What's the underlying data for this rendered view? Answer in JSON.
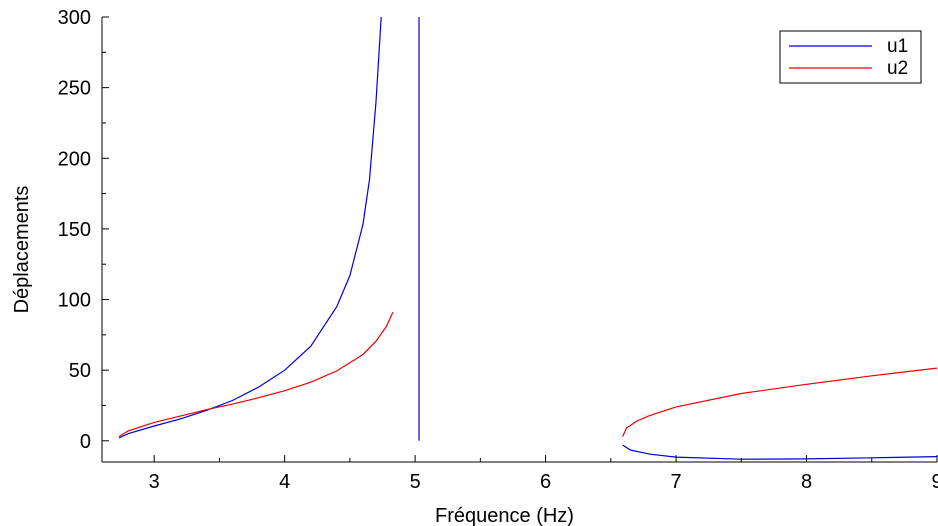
{
  "chart_data": {
    "type": "line",
    "title": "",
    "xlabel": "Fréquence (Hz)",
    "ylabel": "Déplacements",
    "xlim": [
      2.6,
      9.0
    ],
    "ylim": [
      -15,
      300
    ],
    "xticks": [
      3,
      4,
      5,
      6,
      7,
      8,
      9
    ],
    "xtick_labels": [
      "3",
      "4",
      "5",
      "6",
      "7",
      "8",
      "9"
    ],
    "yticks": [
      0,
      50,
      100,
      150,
      200,
      250,
      300
    ],
    "ytick_labels": [
      "0",
      "50",
      "100",
      "150",
      "200",
      "250",
      "300"
    ],
    "grid": false,
    "legend": "top-right",
    "series": [
      {
        "name": "u1",
        "color": "#0000dd",
        "segments": [
          [
            [
              2.73,
              2
            ],
            [
              2.8,
              5.0
            ],
            [
              3.0,
              10.5
            ],
            [
              3.2,
              15.5
            ],
            [
              3.4,
              21.5
            ],
            [
              3.6,
              28.5
            ],
            [
              3.8,
              38
            ],
            [
              4.0,
              50
            ],
            [
              4.2,
              67
            ],
            [
              4.4,
              95
            ],
            [
              4.5,
              117
            ],
            [
              4.6,
              153
            ],
            [
              4.65,
              185
            ],
            [
              4.7,
              240
            ],
            [
              4.74,
              300
            ]
          ],
          [
            [
              5.03,
              300
            ],
            [
              5.03,
              0
            ]
          ],
          [
            [
              6.59,
              -3
            ],
            [
              6.65,
              -6.5
            ],
            [
              6.8,
              -9.5
            ],
            [
              7.0,
              -11.5
            ],
            [
              7.5,
              -13
            ],
            [
              8.0,
              -12.8
            ],
            [
              8.5,
              -12
            ],
            [
              9.0,
              -11.2
            ]
          ]
        ]
      },
      {
        "name": "u2",
        "color": "#ee0000",
        "segments": [
          [
            [
              2.73,
              3
            ],
            [
              2.8,
              7
            ],
            [
              3.0,
              13
            ],
            [
              3.2,
              17.5
            ],
            [
              3.4,
              22
            ],
            [
              3.6,
              26
            ],
            [
              3.8,
              30.5
            ],
            [
              4.0,
              35.5
            ],
            [
              4.2,
              41.5
            ],
            [
              4.4,
              49.5
            ],
            [
              4.6,
              61
            ],
            [
              4.7,
              70.5
            ],
            [
              4.78,
              81
            ],
            [
              4.83,
              91
            ]
          ],
          [
            [
              6.59,
              3
            ],
            [
              6.62,
              9
            ],
            [
              6.7,
              14
            ],
            [
              6.8,
              18
            ],
            [
              7.0,
              24
            ],
            [
              7.5,
              33.5
            ],
            [
              8.0,
              40
            ],
            [
              8.5,
              46
            ],
            [
              9.0,
              51.5
            ]
          ]
        ]
      }
    ]
  }
}
